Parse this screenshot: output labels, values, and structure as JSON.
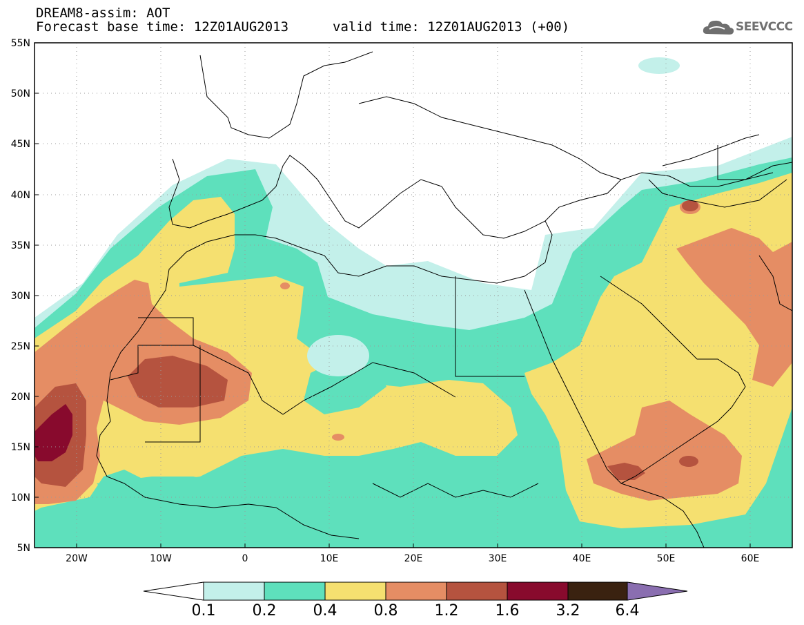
{
  "header": {
    "title": "DREAM8-assim: AOT",
    "forecast_base": "Forecast base time: 12Z01AUG2013",
    "valid_time": "valid time: 12Z01AUG2013 (+00)"
  },
  "logo": {
    "text": "SEEVCCC",
    "icon": "cloud-icon"
  },
  "map": {
    "lat_labels": [
      "55N",
      "50N",
      "45N",
      "40N",
      "35N",
      "30N",
      "25N",
      "20N",
      "15N",
      "10N",
      "5N"
    ],
    "lon_labels": [
      "20W",
      "10W",
      "0",
      "10E",
      "20E",
      "30E",
      "40E",
      "50E",
      "60E"
    ],
    "lon_range": [
      -25,
      65
    ],
    "lat_range": [
      5,
      55
    ],
    "gridlines": "dotted"
  },
  "colorbar": {
    "labels": [
      "0.1",
      "0.2",
      "0.4",
      "0.8",
      "1.2",
      "1.6",
      "3.2",
      "6.4"
    ],
    "colors": [
      "#c3f0ea",
      "#5ee0bc",
      "#f5e070",
      "#e58d64",
      "#b5533f",
      "#880a2d",
      "#3a2210",
      "#8a6eb0"
    ]
  }
}
